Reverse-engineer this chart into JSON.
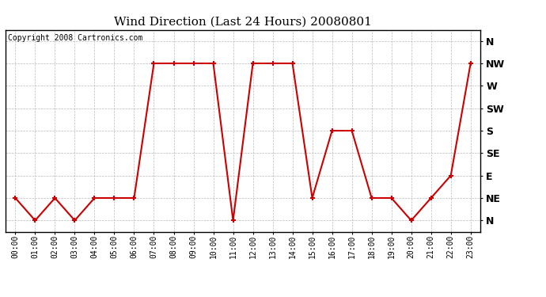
{
  "title": "Wind Direction (Last 24 Hours) 20080801",
  "copyright": "Copyright 2008 Cartronics.com",
  "hours": [
    "00:00",
    "01:00",
    "02:00",
    "03:00",
    "04:00",
    "05:00",
    "06:00",
    "07:00",
    "08:00",
    "09:00",
    "10:00",
    "11:00",
    "12:00",
    "13:00",
    "14:00",
    "15:00",
    "16:00",
    "17:00",
    "18:00",
    "19:00",
    "20:00",
    "21:00",
    "22:00",
    "23:00"
  ],
  "values": [
    2,
    1,
    2,
    1,
    2,
    2,
    2,
    8,
    8,
    8,
    8,
    1,
    8,
    8,
    8,
    2,
    5,
    5,
    2,
    2,
    1,
    2,
    3,
    8
  ],
  "ytick_labels": [
    "N",
    "NE",
    "E",
    "SE",
    "S",
    "SW",
    "W",
    "NW",
    "N"
  ],
  "ytick_positions": [
    1,
    2,
    3,
    4,
    5,
    6,
    7,
    8,
    9
  ],
  "line_color": "#cc0000",
  "marker": "+",
  "marker_size": 5,
  "marker_lw": 1.5,
  "line_width": 1.5,
  "bg_color": "#ffffff",
  "grid_color": "#bbbbbb",
  "title_fontsize": 11,
  "copyright_fontsize": 7,
  "xtick_fontsize": 7,
  "ytick_fontsize": 9
}
